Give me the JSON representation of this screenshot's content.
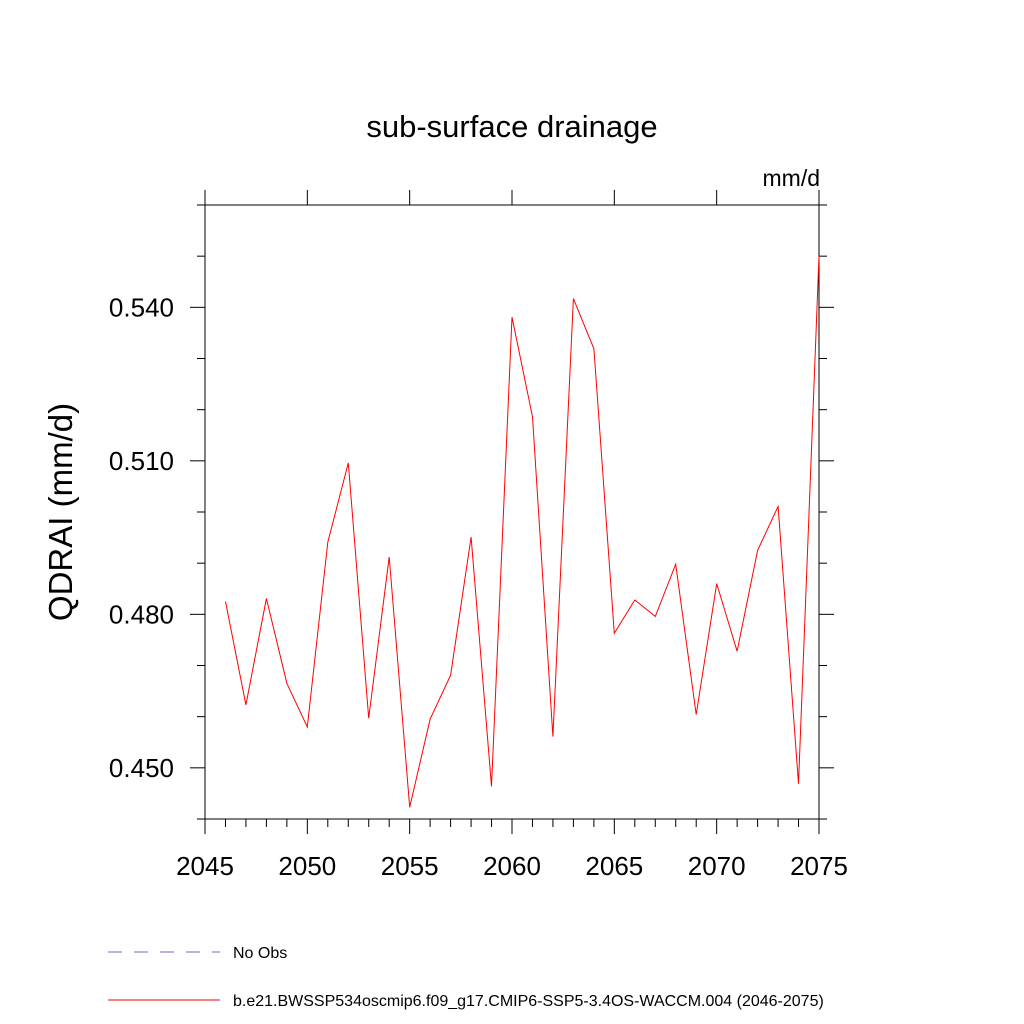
{
  "chart_data": {
    "type": "line",
    "title": "sub-surface drainage",
    "units_label": "mm/d",
    "ylabel": "QDRAI  (mm/d)",
    "xlabel": "",
    "xlim": [
      2045,
      2075
    ],
    "ylim": [
      0.44,
      0.56
    ],
    "x_ticks": [
      2045,
      2050,
      2055,
      2060,
      2065,
      2070,
      2075
    ],
    "y_ticks": [
      0.45,
      0.48,
      0.51,
      0.54
    ],
    "y_tick_labels": [
      "0.450",
      "0.480",
      "0.510",
      "0.540"
    ],
    "x_minor_step": 1,
    "y_minor_step": 0.01,
    "grid": false,
    "legend_position": "bottom",
    "series": [
      {
        "name": "b.e21.BWSSP534oscmip6.f09_g17.CMIP6-SSP5-3.4OS-WACCM.004 (2046-2075)",
        "color": "#ff0000",
        "style": "solid",
        "x": [
          2046,
          2047,
          2048,
          2049,
          2050,
          2051,
          2052,
          2053,
          2054,
          2055,
          2056,
          2057,
          2058,
          2059,
          2060,
          2061,
          2062,
          2063,
          2064,
          2065,
          2066,
          2067,
          2068,
          2069,
          2070,
          2071,
          2072,
          2073,
          2074,
          2075
        ],
        "y": [
          0.4825,
          0.4623,
          0.4831,
          0.4665,
          0.458,
          0.4941,
          0.5096,
          0.4597,
          0.4912,
          0.4423,
          0.4595,
          0.4681,
          0.4951,
          0.4464,
          0.5381,
          0.5186,
          0.4561,
          0.5417,
          0.5319,
          0.4763,
          0.4828,
          0.4796,
          0.4898,
          0.4604,
          0.486,
          0.4728,
          0.4925,
          0.5011,
          0.4469,
          0.55
        ]
      }
    ],
    "legend": [
      {
        "label": "No Obs",
        "color": "#6a6acd",
        "style": "dashed"
      },
      {
        "label": "b.e21.BWSSP534oscmip6.f09_g17.CMIP6-SSP5-3.4OS-WACCM.004 (2046-2075)",
        "color": "#ff0000",
        "style": "solid"
      }
    ]
  }
}
